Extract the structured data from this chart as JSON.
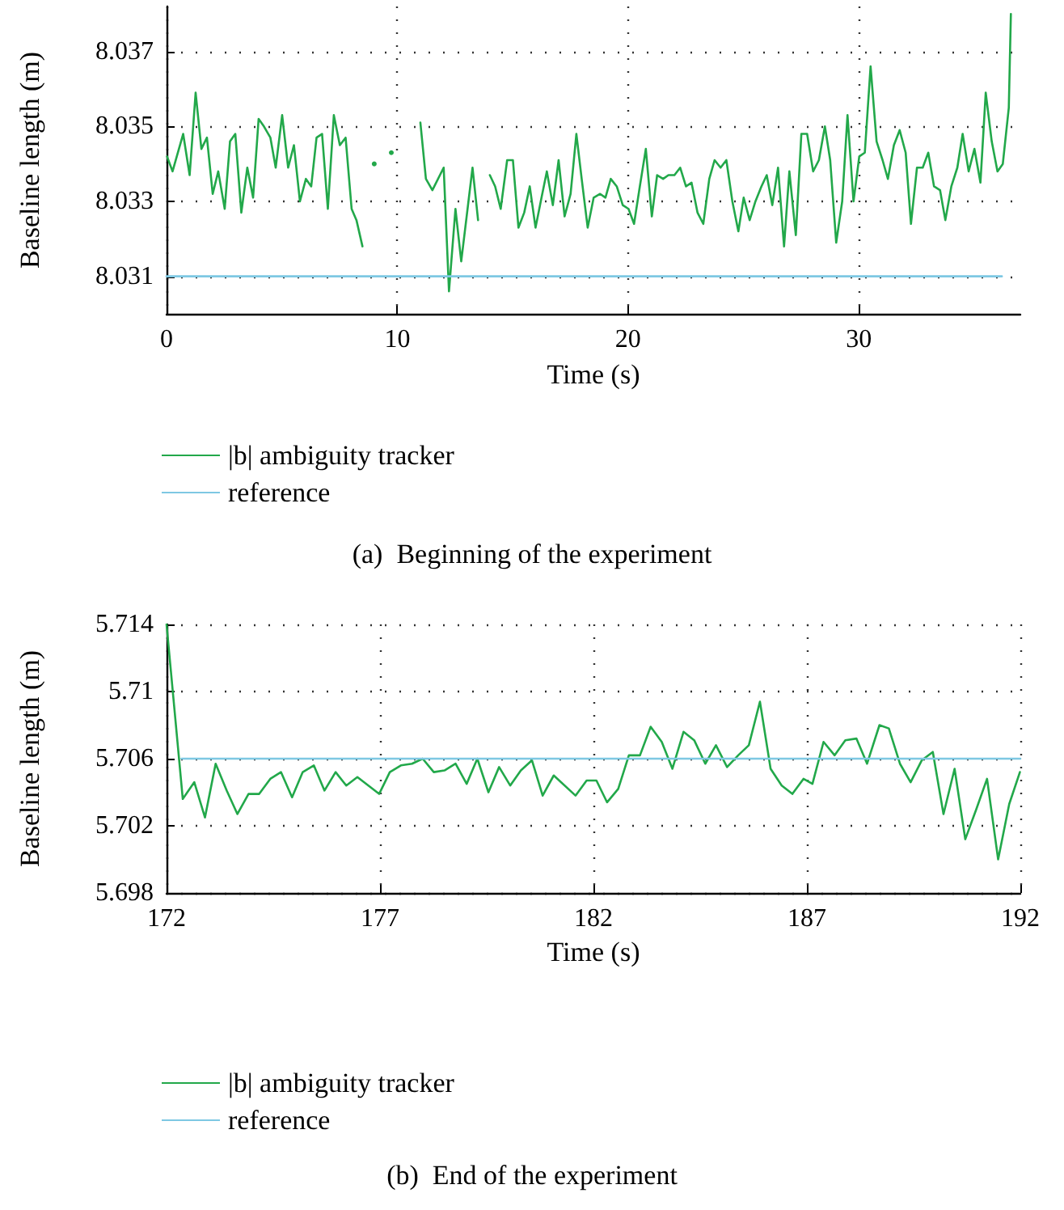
{
  "chart_data": [
    {
      "type": "line",
      "xlabel": "Time (s)",
      "ylabel": "Baseline length (m)",
      "xlim": [
        0,
        37
      ],
      "ylim": [
        8.03,
        8.0382
      ],
      "xticks": [
        0,
        10,
        20,
        30
      ],
      "yticks": [
        8.031,
        8.033,
        8.035,
        8.037
      ],
      "grid": true,
      "legend": "bottom",
      "annotations": [
        "(a)  Beginning of the experiment"
      ],
      "series": [
        {
          "name": "|b| ambiguity tracker",
          "color": "#22a84a",
          "x": [
            0.02,
            0.26,
            0.72,
            1.0,
            1.26,
            1.51,
            1.75,
            2.0,
            2.24,
            2.52,
            2.75,
            2.98,
            3.24,
            3.5,
            3.75,
            3.99,
            4.22,
            4.5,
            4.73,
            5.01,
            5.27,
            5.52,
            5.78,
            6.04,
            6.27,
            6.5,
            6.74,
            6.99,
            7.25,
            7.51,
            7.76,
            8.02,
            8.23,
            8.49,
            8.75,
            9.0,
            9.37,
            9.74,
            10.4,
            11.0,
            11.24,
            11.52,
            12.01,
            12.24,
            12.52,
            12.77,
            13.26,
            13.5,
            13.75,
            14.01,
            14.24,
            14.48,
            14.76,
            15.01,
            15.25,
            15.5,
            15.74,
            15.99,
            16.25,
            16.48,
            16.74,
            16.99,
            17.25,
            17.51,
            17.76,
            17.99,
            18.25,
            18.51,
            18.79,
            19.02,
            19.25,
            19.51,
            19.77,
            20.02,
            20.26,
            20.51,
            20.77,
            21.03,
            21.26,
            21.52,
            21.75,
            22.01,
            22.26,
            22.51,
            22.75,
            23.01,
            23.26,
            23.52,
            23.75,
            24.01,
            24.26,
            24.52,
            24.78,
            25.01,
            25.27,
            25.52,
            25.78,
            26.01,
            26.25,
            26.5,
            26.76,
            26.99,
            27.27,
            27.51,
            27.76,
            28.02,
            28.27,
            28.53,
            28.76,
            29.02,
            29.28,
            29.51,
            29.77,
            30.02,
            30.26,
            30.51,
            30.77,
            31.03,
            31.26,
            31.52,
            31.77,
            32.03,
            32.26,
            32.52,
            32.77,
            33.01,
            33.26,
            33.52,
            33.75,
            34.01,
            34.27,
            34.5,
            34.76,
            35.01,
            35.27,
            35.5,
            35.76,
            36.01,
            36.24,
            36.5,
            36.59
          ],
          "values": [
            8.0342,
            8.0338,
            8.0348,
            8.0337,
            8.0359,
            8.0344,
            8.0347,
            8.0332,
            8.0338,
            8.0328,
            8.0346,
            8.0348,
            8.0327,
            8.0339,
            8.0331,
            8.0352,
            8.035,
            8.0347,
            8.0339,
            8.0353,
            8.0339,
            8.0345,
            8.033,
            8.0336,
            8.0334,
            8.0347,
            8.0348,
            8.0328,
            8.0353,
            8.0345,
            8.0347,
            8.0328,
            8.0325,
            8.0318,
            null,
            8.034,
            null,
            8.0343,
            null,
            8.0351,
            8.0336,
            8.0333,
            8.0339,
            8.0306,
            8.0328,
            8.0314,
            8.0339,
            8.0325,
            null,
            8.0337,
            8.0334,
            8.0328,
            8.0341,
            8.0341,
            8.0323,
            8.0327,
            8.0334,
            8.0323,
            8.0331,
            8.0338,
            8.0329,
            8.0341,
            8.0326,
            8.0332,
            8.0348,
            8.0336,
            8.0323,
            8.0331,
            8.0332,
            8.0331,
            8.0336,
            8.0334,
            8.0329,
            8.0328,
            8.0324,
            8.0334,
            8.0344,
            8.0326,
            8.0337,
            8.0336,
            8.0337,
            8.0337,
            8.0339,
            8.0334,
            8.0335,
            8.0327,
            8.0324,
            8.0336,
            8.0341,
            8.0339,
            8.0341,
            8.033,
            8.0322,
            8.0331,
            8.0325,
            8.033,
            8.0334,
            8.0337,
            8.0329,
            8.0339,
            8.0318,
            8.0338,
            8.0321,
            8.0348,
            8.0348,
            8.0338,
            8.0341,
            8.035,
            8.0341,
            8.0319,
            8.033,
            8.0353,
            8.033,
            8.0342,
            8.0343,
            8.0366,
            8.0346,
            8.0341,
            8.0336,
            8.0345,
            8.0349,
            8.0343,
            8.0324,
            8.0339,
            8.0339,
            8.0343,
            8.0334,
            8.0333,
            8.0325,
            8.0334,
            8.0339,
            8.0348,
            8.0338,
            8.0344,
            8.0335,
            8.0359,
            8.0346,
            8.0338,
            8.034,
            8.0355,
            8.038
          ]
        },
        {
          "name": "reference",
          "color": "#7ec8e3",
          "x": [
            0,
            36.2
          ],
          "values": [
            8.031,
            8.031
          ]
        }
      ]
    },
    {
      "type": "line",
      "xlabel": "Time (s)",
      "ylabel": "Baseline length (m)",
      "xlim": [
        172,
        192
      ],
      "ylim": [
        5.698,
        5.714
      ],
      "xticks": [
        172,
        177,
        182,
        187,
        192
      ],
      "yticks": [
        5.698,
        5.702,
        5.706,
        5.71,
        5.714
      ],
      "grid": true,
      "legend": "bottom",
      "annotations": [
        "(b)  End of the experiment"
      ],
      "series": [
        {
          "name": "|b| ambiguity tracker",
          "color": "#22a84a",
          "x": [
            172.0,
            172.38,
            172.65,
            172.9,
            173.15,
            173.41,
            173.66,
            173.92,
            174.17,
            174.43,
            174.68,
            174.94,
            175.19,
            175.45,
            175.7,
            175.96,
            176.21,
            176.47,
            176.98,
            177.23,
            177.49,
            177.75,
            178.0,
            178.26,
            178.51,
            178.77,
            179.03,
            179.28,
            179.54,
            179.79,
            180.05,
            180.3,
            180.56,
            180.81,
            181.07,
            181.58,
            181.84,
            182.07,
            182.32,
            182.58,
            182.83,
            183.09,
            183.34,
            183.6,
            183.85,
            184.11,
            184.36,
            184.62,
            184.87,
            185.13,
            185.39,
            185.64,
            185.9,
            186.15,
            186.41,
            186.66,
            186.92,
            187.13,
            187.39,
            187.65,
            187.9,
            188.16,
            188.41,
            188.7,
            188.92,
            189.18,
            189.43,
            189.69,
            189.95,
            190.2,
            190.46,
            190.71,
            190.97,
            191.22,
            191.48,
            191.74,
            191.99
          ],
          "values": [
            5.714,
            5.7036,
            5.7046,
            5.7025,
            5.7057,
            5.7041,
            5.7027,
            5.7039,
            5.7039,
            5.7048,
            5.7052,
            5.7037,
            5.7052,
            5.7056,
            5.7041,
            5.7052,
            5.7044,
            5.7049,
            5.7039,
            5.7052,
            5.7056,
            5.7057,
            5.706,
            5.7052,
            5.7053,
            5.7057,
            5.7045,
            5.706,
            5.704,
            5.7055,
            5.7044,
            5.7053,
            5.7059,
            5.7038,
            5.705,
            5.7038,
            5.7047,
            5.7047,
            5.7034,
            5.7042,
            5.7062,
            5.7062,
            5.7079,
            5.707,
            5.7054,
            5.7076,
            5.7071,
            5.7057,
            5.7068,
            5.7055,
            5.7062,
            5.7068,
            5.7094,
            5.7054,
            5.7044,
            5.7039,
            5.7048,
            5.7045,
            5.707,
            5.7062,
            5.7071,
            5.7072,
            5.7057,
            5.708,
            5.7078,
            5.7057,
            5.7046,
            5.7059,
            5.7064,
            5.7027,
            5.7054,
            5.7012,
            5.703,
            5.7048,
            5.7,
            5.7033,
            5.7052
          ]
        },
        {
          "name": "reference",
          "color": "#7ec8e3",
          "x": [
            172.35,
            192
          ],
          "values": [
            5.706,
            5.706
          ]
        }
      ]
    }
  ]
}
